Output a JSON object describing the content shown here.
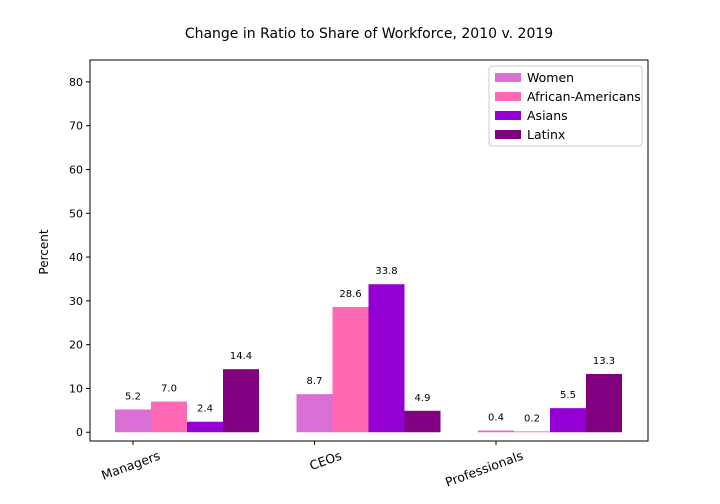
{
  "chart_data": {
    "type": "bar",
    "title": "Change in Ratio to Share of Workforce, 2010 v. 2019",
    "xlabel": "",
    "ylabel": "Percent",
    "ylim": [
      -2,
      85
    ],
    "yticks": [
      0,
      10,
      20,
      30,
      40,
      50,
      60,
      70,
      80
    ],
    "categories": [
      "Managers",
      "CEOs",
      "Professionals"
    ],
    "series": [
      {
        "name": "Women",
        "color": "#da70d6",
        "values": [
          5.2,
          8.7,
          0.4
        ],
        "labels": [
          "5.2",
          "8.7",
          "0.4"
        ]
      },
      {
        "name": "African-Americans",
        "color": "#ff69b4",
        "values": [
          7.0,
          28.6,
          0.2
        ],
        "labels": [
          "7.0",
          "28.6",
          "0.2"
        ]
      },
      {
        "name": "Asians",
        "color": "#9400d3",
        "values": [
          2.4,
          33.8,
          5.5
        ],
        "labels": [
          "2.4",
          "33.8",
          "5.5"
        ]
      },
      {
        "name": "Latinx",
        "color": "#800080",
        "values": [
          14.4,
          4.9,
          13.3
        ],
        "labels": [
          "14.4",
          "4.9",
          "13.3"
        ]
      }
    ],
    "legend": "top-right",
    "grid": false
  }
}
